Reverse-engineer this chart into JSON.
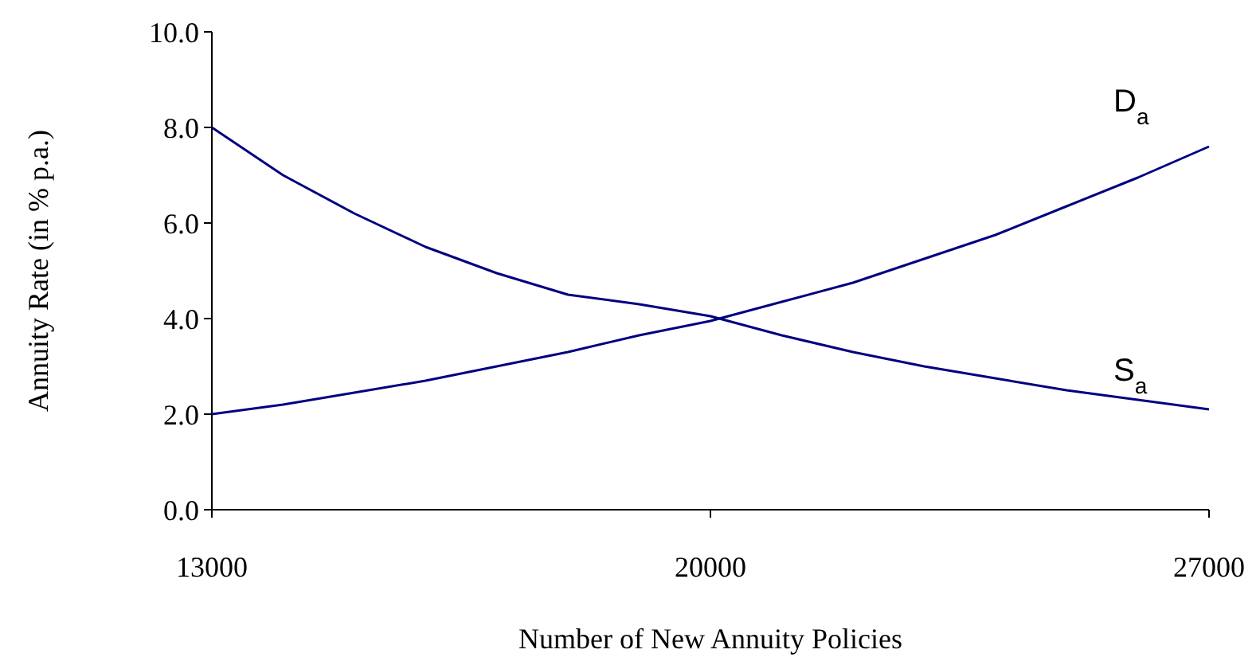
{
  "chart_data": {
    "type": "line",
    "xlabel": "Number of New Annuity Policies",
    "ylabel": "Annuity Rate (in % p.a.)",
    "x": [
      13000,
      14000,
      15000,
      16000,
      17000,
      18000,
      19000,
      20000,
      21000,
      22000,
      23000,
      24000,
      25000,
      26000,
      27000
    ],
    "xlim": [
      13000,
      27000
    ],
    "xticks": [
      13000,
      20000,
      27000
    ],
    "ylim": [
      0,
      10
    ],
    "yticks": [
      {
        "value": 0,
        "label": "0.0"
      },
      {
        "value": 2,
        "label": "2.0"
      },
      {
        "value": 4,
        "label": "4.0"
      },
      {
        "value": 6,
        "label": "6.0"
      },
      {
        "value": 8,
        "label": "8.0"
      },
      {
        "value": 10,
        "label": "10.0"
      }
    ],
    "grid": false,
    "legend": false,
    "marker": "none",
    "line_style": "solid",
    "series": [
      {
        "name": "D$_{a}$",
        "color": "#000080",
        "values": [
          2.0,
          2.2,
          2.45,
          2.7,
          3.0,
          3.3,
          3.65,
          3.95,
          4.35,
          4.75,
          5.25,
          5.75,
          6.35,
          6.95,
          7.6
        ]
      },
      {
        "name": "S$_{a}$",
        "color": "#000080",
        "values": [
          8.0,
          7.0,
          6.2,
          5.5,
          4.95,
          4.5,
          4.3,
          4.05,
          3.65,
          3.3,
          3.0,
          2.75,
          2.5,
          2.3,
          2.1
        ]
      }
    ]
  }
}
